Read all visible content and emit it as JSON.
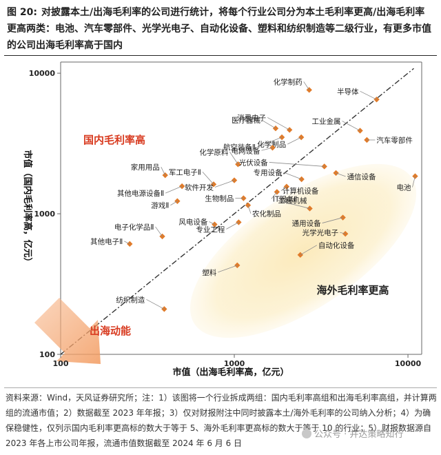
{
  "title": {
    "fig_no": "图 20:",
    "text": "对披露本土/出海毛利率的公司进行统计，将每个行业公司分为本土毛利率更高/出海毛利率更高两类：电池、汽车零部件、光学光电子、自动化设备、塑料和纺织制造等二级行业，有更多市值的公司出海毛利率高于国内"
  },
  "chart_data": {
    "type": "scatter",
    "xlabel": "市值（出海毛利率高，亿元）",
    "ylabel": "市值（国内毛利率高，亿元）",
    "xscale": "log",
    "yscale": "log",
    "xlim": [
      100,
      12000
    ],
    "ylim": [
      100,
      12000
    ],
    "xticks": [
      "100",
      "1000",
      "10000"
    ],
    "yticks": [
      "100",
      "1000",
      "10000"
    ],
    "grid": false,
    "diagonal": "y = x (dash-dot)",
    "marker_color": "#e07b2a",
    "points": [
      {
        "label": "化学制药",
        "x": 2700,
        "y": 7600
      },
      {
        "label": "半导体",
        "x": 6600,
        "y": 6500
      },
      {
        "label": "消费电子",
        "x": 2080,
        "y": 3950
      },
      {
        "label": "医疗器械",
        "x": 1730,
        "y": 4050
      },
      {
        "label": "航空装备Ⅱ",
        "x": 1880,
        "y": 3500
      },
      {
        "label": "化学制品",
        "x": 2430,
        "y": 3500
      },
      {
        "label": "工业金属",
        "x": 5300,
        "y": 3900
      },
      {
        "label": "汽车零部件",
        "x": 5800,
        "y": 3350
      },
      {
        "label": "电网设备",
        "x": 1660,
        "y": 2950
      },
      {
        "label": "化学原料",
        "x": 1050,
        "y": 2250
      },
      {
        "label": "光伏设备",
        "x": 3300,
        "y": 2170
      },
      {
        "label": "家用用品",
        "x": 400,
        "y": 1880
      },
      {
        "label": "军工电子Ⅱ",
        "x": 760,
        "y": 1620
      },
      {
        "label": "软件开发",
        "x": 1000,
        "y": 1730
      },
      {
        "label": "通信设备",
        "x": 3850,
        "y": 1950
      },
      {
        "label": "电池",
        "x": 11000,
        "y": 1850
      },
      {
        "label": "专用设备",
        "x": 2440,
        "y": 1760
      },
      {
        "label": "其他电源设备Ⅱ",
        "x": 500,
        "y": 1570
      },
      {
        "label": "计算机设备",
        "x": 2000,
        "y": 1560
      },
      {
        "label": "IT服务Ⅱ",
        "x": 1760,
        "y": 1430
      },
      {
        "label": "生物制品",
        "x": 1130,
        "y": 1290
      },
      {
        "label": "游戏Ⅱ",
        "x": 470,
        "y": 1230
      },
      {
        "label": "农化制品",
        "x": 1200,
        "y": 1150
      },
      {
        "label": "工程机械",
        "x": 2720,
        "y": 1090
      },
      {
        "label": "通用设备",
        "x": 4220,
        "y": 940
      },
      {
        "label": "风电设备",
        "x": 770,
        "y": 840
      },
      {
        "label": "专业工程",
        "x": 1060,
        "y": 870
      },
      {
        "label": "光学光电子",
        "x": 4360,
        "y": 720
      },
      {
        "label": "电子化学品Ⅱ",
        "x": 385,
        "y": 690
      },
      {
        "label": "其他电子Ⅱ",
        "x": 250,
        "y": 610
      },
      {
        "label": "自动化设备",
        "x": 2400,
        "y": 510
      },
      {
        "label": "塑料",
        "x": 1040,
        "y": 430
      },
      {
        "label": "纺织制造",
        "x": 395,
        "y": 210
      }
    ],
    "annotations": {
      "domestic_higher": "国内毛利率高",
      "overseas_higher": "海外毛利率更高",
      "arrow_label": "出海动能"
    }
  },
  "notes": "资料来源：Wind，天风证券研究所；注：1）该图将一个行业拆成两组：国内毛利率高组和出海毛利率高组，并计算两组的流通市值；2）数据截至 2023 年年报；3）仅对财报附注中同时披露本土/海外毛利率的公司纳入分析；4）为确保稳健性，仅列示国内毛利率更高标的数大于等于 5、海外毛利率更高标的数大于等于 10 的行业；5）财报数据源自 2023 年各上市公司年报，流通市值数据截至 2024 年 6 月 6 日",
  "watermark": "公众号 · 并达策略知行"
}
